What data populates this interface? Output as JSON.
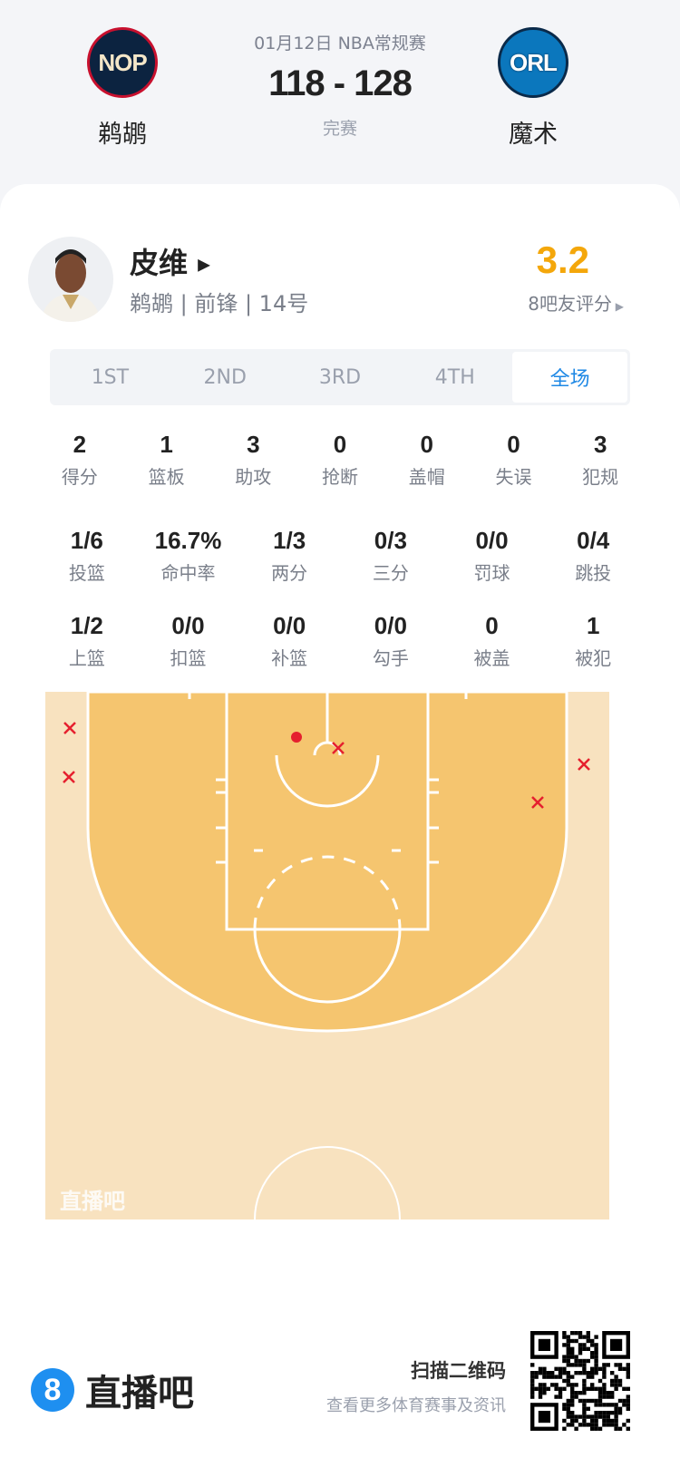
{
  "match": {
    "date_league": "01月12日 NBA常规赛",
    "score": "118 - 128",
    "status": "完赛",
    "home": {
      "abbr": "NOP",
      "name": "鹈鹕"
    },
    "away": {
      "abbr": "ORL",
      "name": "魔术"
    }
  },
  "player": {
    "name": "皮维",
    "meta": "鹈鹕 | 前锋 | 14号",
    "rating": "3.2",
    "rating_label": "8吧友评分"
  },
  "tabs": [
    {
      "label": "1ST"
    },
    {
      "label": "2ND"
    },
    {
      "label": "3RD"
    },
    {
      "label": "4TH"
    },
    {
      "label": "全场",
      "active": true
    }
  ],
  "stats": [
    [
      {
        "v": "2",
        "l": "得分"
      },
      {
        "v": "1",
        "l": "篮板"
      },
      {
        "v": "3",
        "l": "助攻"
      },
      {
        "v": "0",
        "l": "抢断"
      },
      {
        "v": "0",
        "l": "盖帽"
      },
      {
        "v": "0",
        "l": "失误"
      },
      {
        "v": "3",
        "l": "犯规"
      }
    ],
    [
      {
        "v": "1/6",
        "l": "投篮"
      },
      {
        "v": "16.7%",
        "l": "命中率"
      },
      {
        "v": "1/3",
        "l": "两分"
      },
      {
        "v": "0/3",
        "l": "三分"
      },
      {
        "v": "0/0",
        "l": "罚球"
      },
      {
        "v": "0/4",
        "l": "跳投"
      }
    ],
    [
      {
        "v": "1/2",
        "l": "上篮"
      },
      {
        "v": "0/0",
        "l": "扣篮"
      },
      {
        "v": "0/0",
        "l": "补篮"
      },
      {
        "v": "0/0",
        "l": "勾手"
      },
      {
        "v": "0",
        "l": "被盖"
      },
      {
        "v": "1",
        "l": "被犯"
      }
    ]
  ],
  "shot_chart": {
    "watermark": "直播吧",
    "made_color": "#e5202e",
    "miss_color": "#e5202e",
    "shots": [
      {
        "result": "made",
        "zone": "paint-left"
      },
      {
        "result": "miss",
        "zone": "left-corner-three"
      },
      {
        "result": "miss",
        "zone": "left-corner-three"
      },
      {
        "result": "miss",
        "zone": "rim"
      },
      {
        "result": "miss",
        "zone": "right-corner-three"
      },
      {
        "result": "miss",
        "zone": "right-midrange"
      }
    ]
  },
  "footer": {
    "brand_mark": "8",
    "brand": "直播吧",
    "qr_title": "扫描二维码",
    "qr_sub": "查看更多体育赛事及资讯"
  }
}
